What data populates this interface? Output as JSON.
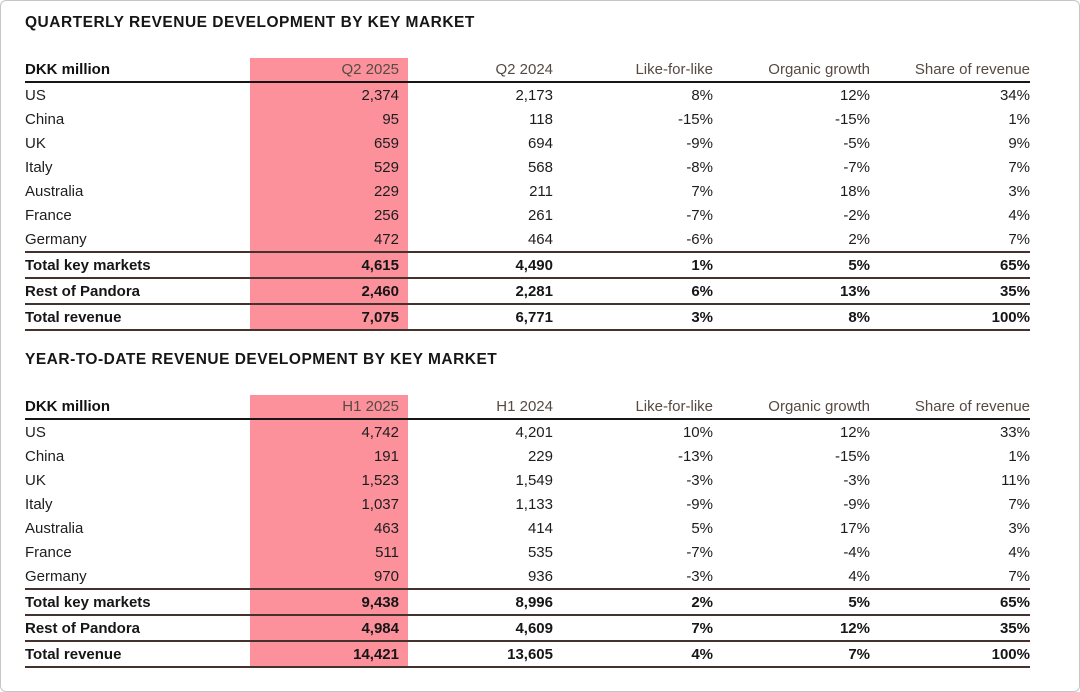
{
  "colors": {
    "highlight_pink": "#FC919B",
    "header_rule": "#161616",
    "total_rule": "#44332c",
    "header_text": "#564a43",
    "body_text": "#1d1d1d",
    "frame_border": "#c6c6c6"
  },
  "tables": [
    {
      "title": "QUARTERLY REVENUE DEVELOPMENT BY KEY MARKET",
      "unit_label": "DKK million",
      "columns": [
        "Q2 2025",
        "Q2 2024",
        "Like-for-like",
        "Organic growth",
        "Share of revenue"
      ],
      "highlighted_column": "Q2 2025",
      "rows": [
        {
          "label": "US",
          "values": [
            "2,374",
            "2,173",
            "8%",
            "12%",
            "34%"
          ],
          "bold": false
        },
        {
          "label": "China",
          "values": [
            "95",
            "118",
            "-15%",
            "-15%",
            "1%"
          ],
          "bold": false
        },
        {
          "label": "UK",
          "values": [
            "659",
            "694",
            "-9%",
            "-5%",
            "9%"
          ],
          "bold": false
        },
        {
          "label": "Italy",
          "values": [
            "529",
            "568",
            "-8%",
            "-7%",
            "7%"
          ],
          "bold": false
        },
        {
          "label": "Australia",
          "values": [
            "229",
            "211",
            "7%",
            "18%",
            "3%"
          ],
          "bold": false
        },
        {
          "label": "France",
          "values": [
            "256",
            "261",
            "-7%",
            "-2%",
            "4%"
          ],
          "bold": false
        },
        {
          "label": "Germany",
          "values": [
            "472",
            "464",
            "-6%",
            "2%",
            "7%"
          ],
          "bold": false
        },
        {
          "label": "Total key markets",
          "values": [
            "4,615",
            "4,490",
            "1%",
            "5%",
            "65%"
          ],
          "bold": true
        },
        {
          "label": "Rest of Pandora",
          "values": [
            "2,460",
            "2,281",
            "6%",
            "13%",
            "35%"
          ],
          "bold": true
        },
        {
          "label": "Total revenue",
          "values": [
            "7,075",
            "6,771",
            "3%",
            "8%",
            "100%"
          ],
          "bold": true
        }
      ]
    },
    {
      "title": "YEAR-TO-DATE REVENUE DEVELOPMENT BY KEY MARKET",
      "unit_label": "DKK million",
      "columns": [
        "H1 2025",
        "H1 2024",
        "Like-for-like",
        "Organic growth",
        "Share of revenue"
      ],
      "highlighted_column": "H1 2025",
      "rows": [
        {
          "label": "US",
          "values": [
            "4,742",
            "4,201",
            "10%",
            "12%",
            "33%"
          ],
          "bold": false
        },
        {
          "label": "China",
          "values": [
            "191",
            "229",
            "-13%",
            "-15%",
            "1%"
          ],
          "bold": false
        },
        {
          "label": "UK",
          "values": [
            "1,523",
            "1,549",
            "-3%",
            "-3%",
            "11%"
          ],
          "bold": false
        },
        {
          "label": "Italy",
          "values": [
            "1,037",
            "1,133",
            "-9%",
            "-9%",
            "7%"
          ],
          "bold": false
        },
        {
          "label": "Australia",
          "values": [
            "463",
            "414",
            "5%",
            "17%",
            "3%"
          ],
          "bold": false
        },
        {
          "label": "France",
          "values": [
            "511",
            "535",
            "-7%",
            "-4%",
            "4%"
          ],
          "bold": false
        },
        {
          "label": "Germany",
          "values": [
            "970",
            "936",
            "-3%",
            "4%",
            "7%"
          ],
          "bold": false
        },
        {
          "label": "Total key markets",
          "values": [
            "9,438",
            "8,996",
            "2%",
            "5%",
            "65%"
          ],
          "bold": true
        },
        {
          "label": "Rest of Pandora",
          "values": [
            "4,984",
            "4,609",
            "7%",
            "12%",
            "35%"
          ],
          "bold": true
        },
        {
          "label": "Total revenue",
          "values": [
            "14,421",
            "13,605",
            "4%",
            "7%",
            "100%"
          ],
          "bold": true
        }
      ]
    }
  ]
}
